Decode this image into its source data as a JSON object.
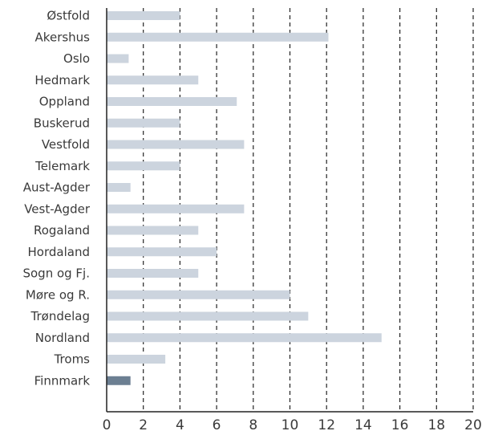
{
  "chart_data": {
    "type": "bar",
    "orientation": "horizontal",
    "categories": [
      "Østfold",
      "Akershus",
      "Oslo",
      "Hedmark",
      "Oppland",
      "Buskerud",
      "Vestfold",
      "Telemark",
      "Aust-Agder",
      "Vest-Agder",
      "Rogaland",
      "Hordaland",
      "Sogn og Fj.",
      "Møre og R.",
      "Trøndelag",
      "Nordland",
      "Troms",
      "Finnmark"
    ],
    "values": [
      4.0,
      12.1,
      1.2,
      5.0,
      7.1,
      4.0,
      7.5,
      4.0,
      1.3,
      7.5,
      5.0,
      6.0,
      5.0,
      10.0,
      11.0,
      15.0,
      3.2,
      1.3
    ],
    "highlight_category": "Finnmark",
    "xlim": [
      0,
      20
    ],
    "xticks": [
      0,
      2,
      4,
      6,
      8,
      10,
      12,
      14,
      16,
      18,
      20
    ],
    "xtick_labels": [
      "0",
      "2",
      "4",
      "6",
      "8",
      "10",
      "12",
      "14",
      "16",
      "18",
      "20"
    ],
    "grid": "vertical dashed",
    "title": "",
    "xlabel": "",
    "ylabel": "",
    "colors": {
      "bar": "#ccd4de",
      "highlight": "#6c7f92",
      "grid": "#222222",
      "axis": "#222222",
      "text": "#3a3a3a"
    }
  }
}
